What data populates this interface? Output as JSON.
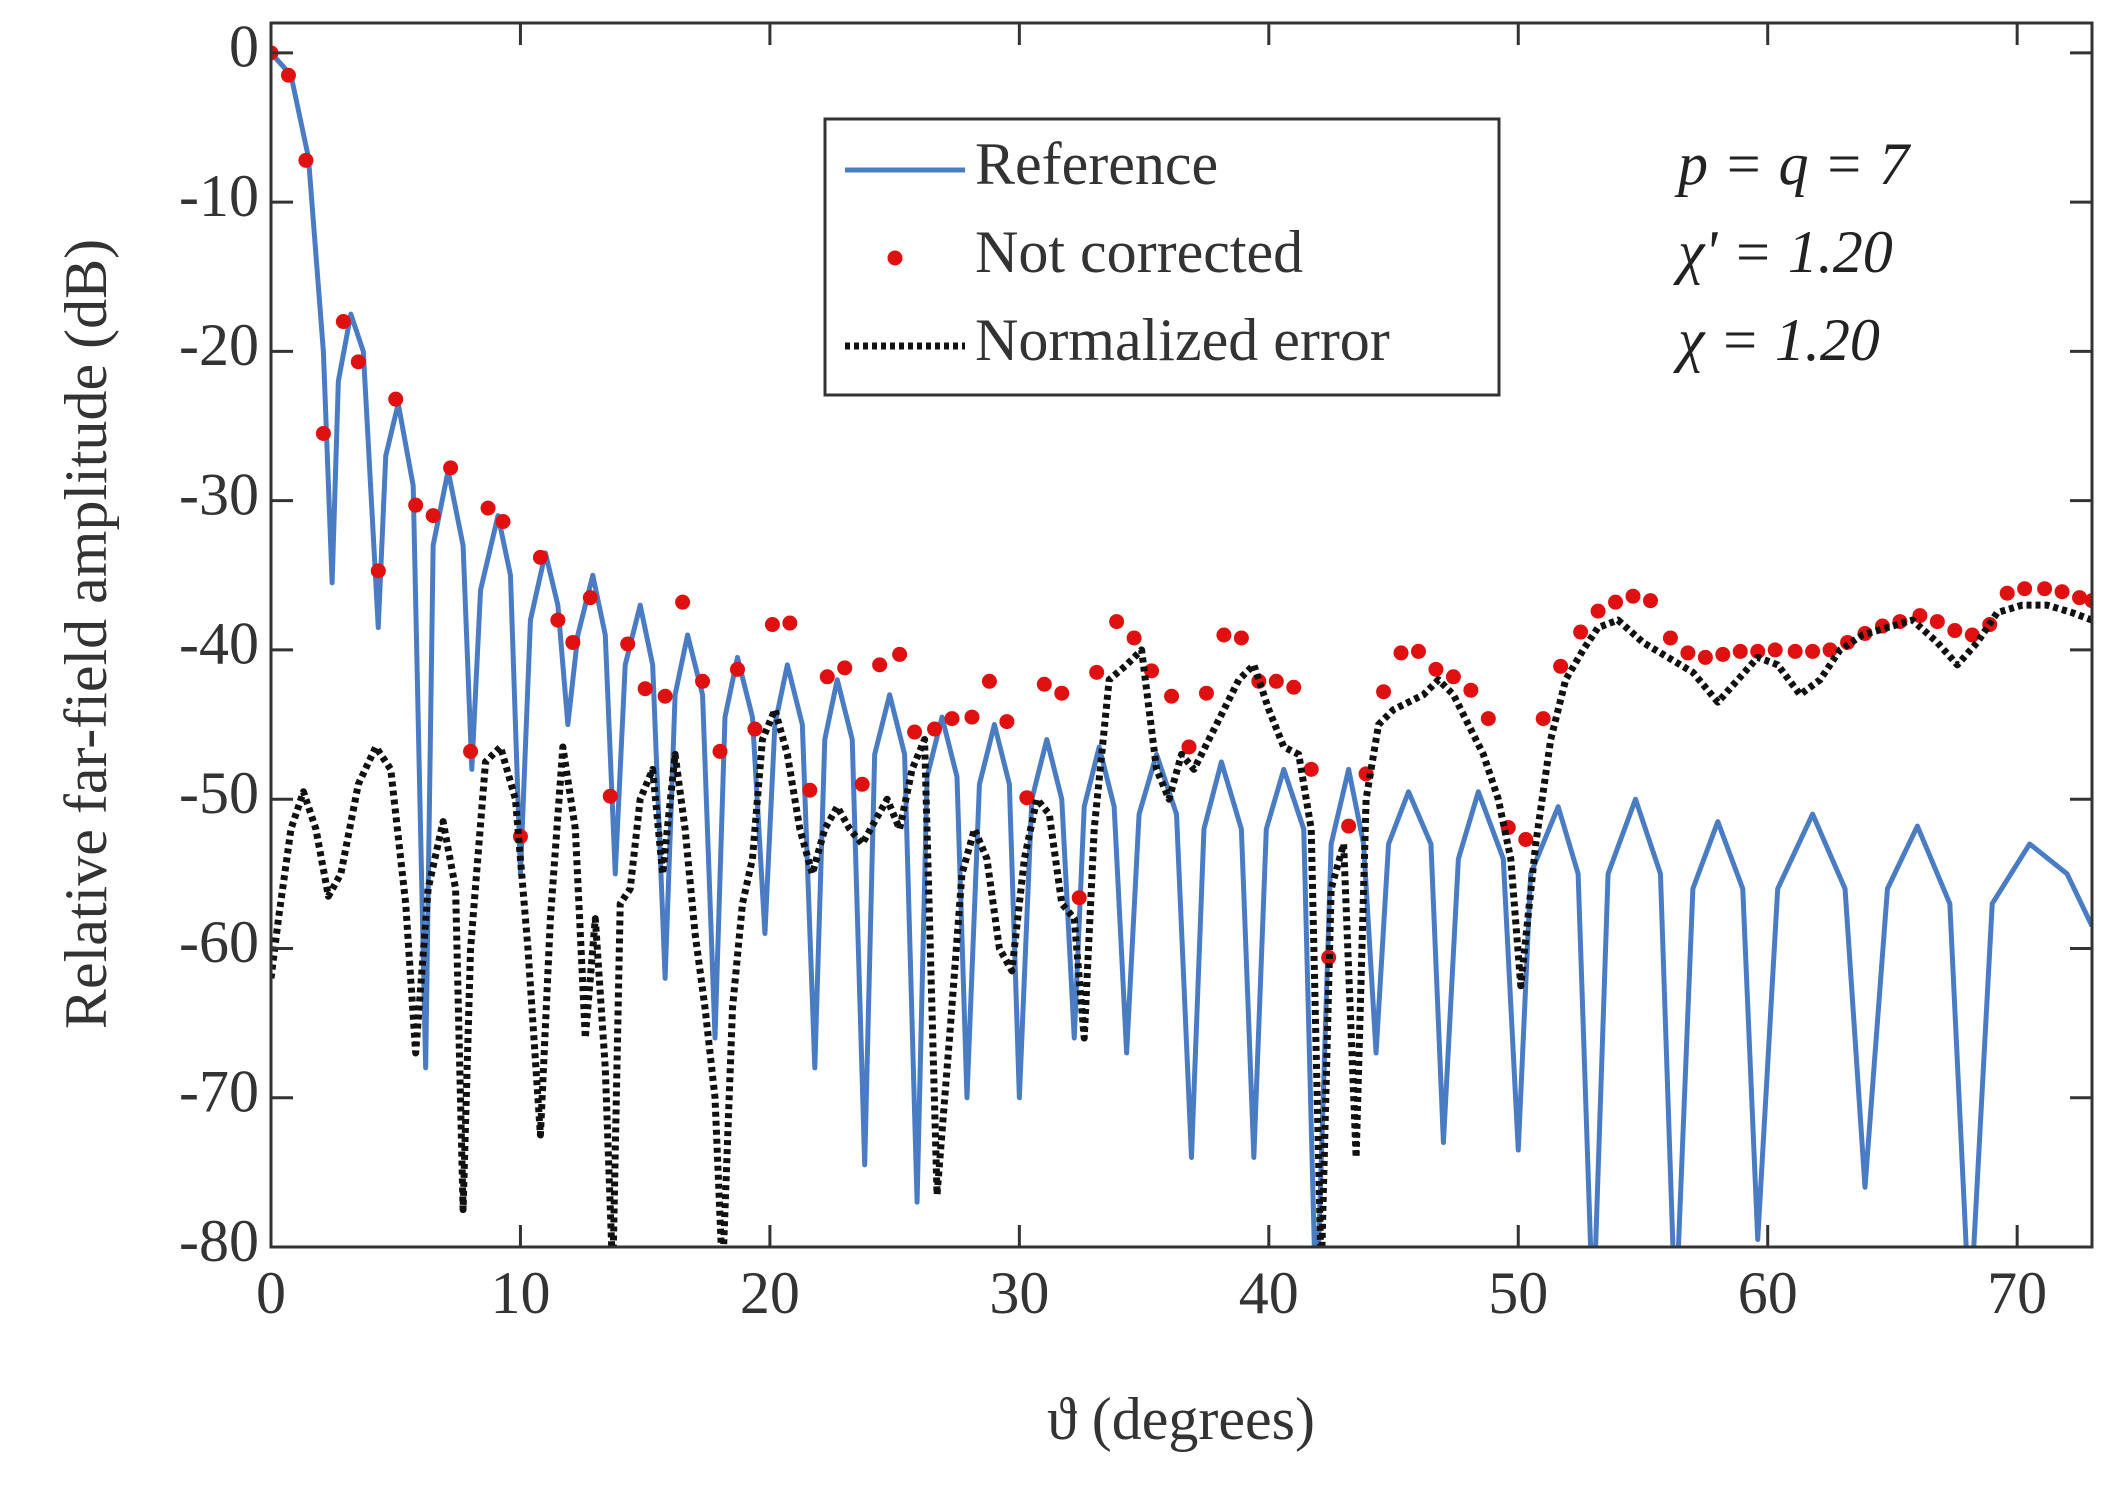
{
  "chart_data": {
    "type": "line",
    "xlabel": "ϑ (degrees)",
    "ylabel": "Relative far-field amplitude (dB)",
    "xlim": [
      0,
      73
    ],
    "ylim": [
      -80,
      2
    ],
    "xticks": [
      0,
      10,
      20,
      30,
      40,
      50,
      60,
      70
    ],
    "yticks": [
      -80,
      -70,
      -60,
      -50,
      -40,
      -30,
      -20,
      -10,
      0
    ],
    "legend": "upper center",
    "annotations": [
      "p = q = 7",
      "χ' = 1.20",
      "χ = 1.20"
    ],
    "series": [
      {
        "name": "Reference",
        "color": "#4a7cc4",
        "style": "solid",
        "x": [
          0,
          0.8,
          1.5,
          2.1,
          2.45,
          2.7,
          3.2,
          3.7,
          4.3,
          4.6,
          5.1,
          5.7,
          6.2,
          6.5,
          7.1,
          7.7,
          8.05,
          8.4,
          9.1,
          9.6,
          10.0,
          10.4,
          11.0,
          11.5,
          11.9,
          12.3,
          12.9,
          13.4,
          13.8,
          14.2,
          14.8,
          15.3,
          15.8,
          16.2,
          16.7,
          17.3,
          17.8,
          18.2,
          18.7,
          19.3,
          19.8,
          20.2,
          20.7,
          21.3,
          21.8,
          22.2,
          22.7,
          23.3,
          23.8,
          24.2,
          24.8,
          25.4,
          25.9,
          26.3,
          26.9,
          27.5,
          27.9,
          28.4,
          29.0,
          29.6,
          30.0,
          30.5,
          31.1,
          31.7,
          32.2,
          32.6,
          33.2,
          33.8,
          34.3,
          34.8,
          35.5,
          36.3,
          36.9,
          37.4,
          38.1,
          38.9,
          39.4,
          39.9,
          40.6,
          41.4,
          41.9,
          42.5,
          43.2,
          43.8,
          44.3,
          44.8,
          45.6,
          46.5,
          47.0,
          47.6,
          48.4,
          49.4,
          50.0,
          50.5,
          51.6,
          52.4,
          53.0,
          53.6,
          54.7,
          55.7,
          56.3,
          57.0,
          58.0,
          59.0,
          59.6,
          60.4,
          61.8,
          63.1,
          63.9,
          64.8,
          66.0,
          67.3,
          68.1,
          69.0,
          70.5,
          72.0,
          73.0
        ],
        "values": [
          0,
          -1.5,
          -7,
          -20,
          -35.5,
          -22,
          -17.5,
          -20,
          -38.5,
          -27,
          -23.5,
          -29,
          -68,
          -33,
          -28,
          -33,
          -48,
          -36,
          -31,
          -35,
          -55,
          -38,
          -33.5,
          -37,
          -45,
          -39,
          -35,
          -39,
          -55,
          -41,
          -37,
          -41,
          -62,
          -43,
          -39,
          -43,
          -66,
          -44.5,
          -40.5,
          -44.5,
          -59,
          -45,
          -41,
          -45,
          -68,
          -46,
          -42,
          -46,
          -74.5,
          -47,
          -43,
          -47,
          -77,
          -48.5,
          -44.5,
          -48.5,
          -70,
          -49,
          -45,
          -49,
          -70,
          -50,
          -46,
          -50,
          -66,
          -50.5,
          -46.5,
          -50.5,
          -67,
          -51,
          -47,
          -51,
          -74,
          -52,
          -47.5,
          -52,
          -74,
          -52,
          -48,
          -52,
          -85,
          -53,
          -48,
          -53,
          -67,
          -53,
          -49.5,
          -53,
          -73,
          -54,
          -49.5,
          -54,
          -73.5,
          -55,
          -50.5,
          -55,
          -85,
          -55,
          -50,
          -55,
          -85,
          -56,
          -51.5,
          -56,
          -79.5,
          -56,
          -51,
          -56,
          -76,
          -56,
          -51.8,
          -57,
          -85,
          -57,
          -53,
          -55,
          -58.5
        ]
      },
      {
        "name": "Not corrected",
        "color": "#e01010",
        "style": "markers",
        "x": [
          0,
          0.7,
          1.4,
          2.1,
          2.9,
          3.5,
          4.3,
          5.0,
          5.8,
          6.5,
          7.2,
          8.0,
          8.7,
          9.3,
          10.0,
          10.8,
          11.5,
          12.1,
          12.8,
          13.6,
          14.3,
          15.0,
          15.8,
          16.5,
          17.3,
          18.0,
          18.7,
          19.4,
          20.1,
          20.8,
          21.6,
          22.3,
          23.0,
          23.7,
          24.4,
          25.2,
          25.8,
          26.6,
          27.3,
          28.1,
          28.8,
          29.5,
          30.3,
          31.0,
          31.7,
          32.4,
          33.1,
          33.9,
          34.6,
          35.3,
          36.1,
          36.8,
          37.5,
          38.2,
          38.9,
          39.6,
          40.3,
          41.0,
          41.7,
          42.4,
          43.2,
          43.9,
          44.6,
          45.3,
          46.0,
          46.7,
          47.4,
          48.1,
          48.8,
          49.6,
          50.3,
          51.0,
          51.7,
          52.5,
          53.2,
          53.9,
          54.6,
          55.3,
          56.1,
          56.8,
          57.5,
          58.2,
          58.9,
          59.6,
          60.3,
          61.1,
          61.8,
          62.5,
          63.2,
          63.9,
          64.6,
          65.3,
          66.1,
          66.8,
          67.5,
          68.2,
          68.9,
          69.6,
          70.3,
          71.1,
          71.8,
          72.5,
          73.0
        ],
        "values": [
          0,
          -1.5,
          -7.2,
          -25.5,
          -18,
          -20.7,
          -34.7,
          -23.2,
          -30.3,
          -31,
          -27.8,
          -46.8,
          -30.5,
          -31.4,
          -52.5,
          -33.8,
          -38,
          -39.5,
          -36.5,
          -49.8,
          -39.6,
          -42.6,
          -43.1,
          -36.8,
          -42.1,
          -46.8,
          -41.3,
          -45.3,
          -38.3,
          -38.2,
          -49.4,
          -41.8,
          -41.2,
          -49,
          -41,
          -40.3,
          -45.5,
          -45.3,
          -44.6,
          -44.5,
          -42.1,
          -44.8,
          -49.9,
          -42.3,
          -42.9,
          -56.6,
          -41.5,
          -38.1,
          -39.2,
          -41.4,
          -43.1,
          -46.5,
          -42.9,
          -39,
          -39.2,
          -42.1,
          -42.1,
          -42.5,
          -48,
          -60.6,
          -51.8,
          -48.3,
          -42.8,
          -40.2,
          -40.1,
          -41.3,
          -41.8,
          -42.7,
          -44.6,
          -51.9,
          -52.7,
          -44.6,
          -41.1,
          -38.8,
          -37.4,
          -36.8,
          -36.4,
          -36.7,
          -39.2,
          -40.2,
          -40.5,
          -40.3,
          -40.1,
          -40.1,
          -40,
          -40.1,
          -40.1,
          -40,
          -39.5,
          -38.9,
          -38.4,
          -38.1,
          -37.7,
          -38.1,
          -38.7,
          -39,
          -38.3,
          -36.2,
          -35.9,
          -35.9,
          -36.1,
          -36.5,
          -36.7
        ]
      },
      {
        "name": "Normalized error",
        "color": "#111111",
        "style": "dotted",
        "x": [
          0,
          0.3,
          0.8,
          1.3,
          1.8,
          2.3,
          2.8,
          3.5,
          4.2,
          4.8,
          5.4,
          5.8,
          6.3,
          6.9,
          7.4,
          7.7,
          8.0,
          8.6,
          9.2,
          9.8,
          10.3,
          10.8,
          11.2,
          11.7,
          12.2,
          12.6,
          13.0,
          13.4,
          13.7,
          14.0,
          14.4,
          14.8,
          15.3,
          15.7,
          16.2,
          16.6,
          17.0,
          17.4,
          17.8,
          18.1,
          18.5,
          18.9,
          19.3,
          19.7,
          20.2,
          20.7,
          21.2,
          21.7,
          22.2,
          22.7,
          23.2,
          23.7,
          24.2,
          24.7,
          25.2,
          25.7,
          26.2,
          26.7,
          27.2,
          27.7,
          28.2,
          28.7,
          29.2,
          29.7,
          30.2,
          30.7,
          31.2,
          31.7,
          32.2,
          32.6,
          33.0,
          33.6,
          34.3,
          34.9,
          35.5,
          36.0,
          36.5,
          37.0,
          37.6,
          38.2,
          38.8,
          39.4,
          40.0,
          40.6,
          41.2,
          41.7,
          42.1,
          42.5,
          43.0,
          43.5,
          43.9,
          44.4,
          45.0,
          45.6,
          46.2,
          46.8,
          47.4,
          48.0,
          48.6,
          49.2,
          49.7,
          50.1,
          50.7,
          51.3,
          51.9,
          52.6,
          53.2,
          54.0,
          55.0,
          56.0,
          57.0,
          58.0,
          58.8,
          59.6,
          60.4,
          61.3,
          62.1,
          62.9,
          63.8,
          64.8,
          65.8,
          66.8,
          67.6,
          68.4,
          69.2,
          70.2,
          71.2,
          72.2,
          73.0
        ],
        "values": [
          -62,
          -58,
          -52,
          -49.5,
          -52,
          -56.5,
          -55,
          -49,
          -46.5,
          -48,
          -57,
          -67,
          -56,
          -51.5,
          -56,
          -77.5,
          -60,
          -47.5,
          -46.5,
          -50,
          -60,
          -72.5,
          -58,
          -46.5,
          -52,
          -66,
          -58,
          -68,
          -82,
          -57,
          -56,
          -50,
          -48,
          -55,
          -47,
          -52,
          -59,
          -64,
          -70,
          -82,
          -64,
          -57,
          -54,
          -46,
          -44,
          -47,
          -52,
          -55,
          -52,
          -50.5,
          -52,
          -53,
          -51.5,
          -50,
          -52,
          -48,
          -46,
          -76.5,
          -66,
          -55,
          -52,
          -54,
          -60,
          -61.5,
          -54,
          -50,
          -51,
          -57,
          -58,
          -66,
          -52,
          -42,
          -41,
          -40,
          -48,
          -50,
          -47,
          -48,
          -46,
          -44,
          -42,
          -41,
          -44,
          -46.5,
          -47,
          -52,
          -82,
          -56,
          -53,
          -74,
          -50,
          -45,
          -44,
          -43.5,
          -43,
          -42,
          -43,
          -45,
          -47,
          -50,
          -54,
          -62.5,
          -53,
          -46,
          -42,
          -40,
          -38.5,
          -38,
          -39.5,
          -40.5,
          -41.5,
          -43.5,
          -42,
          -40.5,
          -41,
          -43,
          -42,
          -40,
          -39,
          -38.5,
          -38,
          -39.5,
          -41,
          -39.5,
          -37.5,
          -37,
          -37,
          -37.5,
          -38
        ]
      }
    ]
  }
}
